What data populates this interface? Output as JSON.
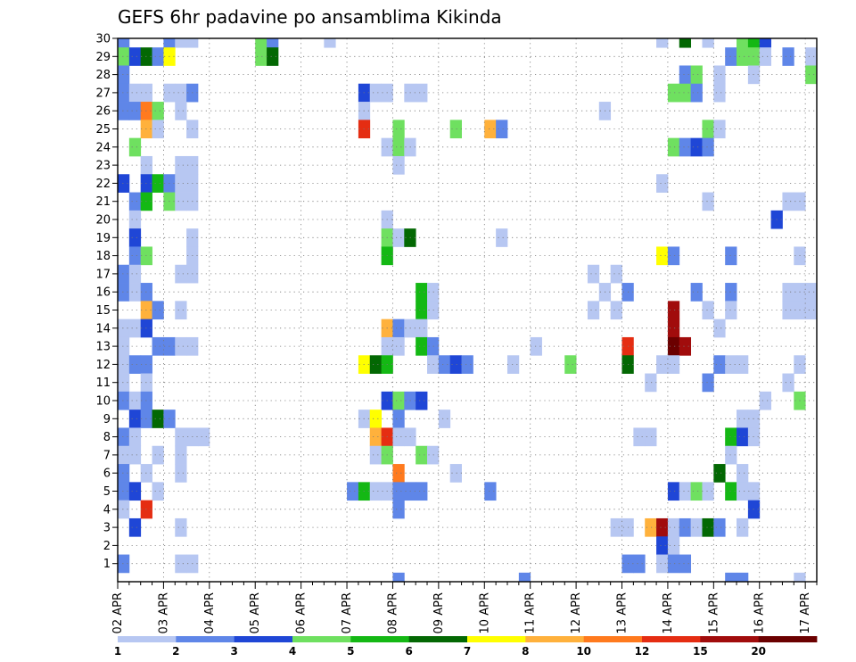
{
  "chart_data": {
    "type": "heatmap",
    "title": "GEFS 6hr padavine po ansamblima Kikinda",
    "xlabel": "",
    "ylabel": "",
    "x_tick_labels": [
      "02 APR",
      "03 APR",
      "04 APR",
      "05 APR",
      "06 APR",
      "07 APR",
      "08 APR",
      "09 APR",
      "10 APR",
      "11 APR",
      "12 APR",
      "13 APR",
      "14 APR",
      "15 APR",
      "16 APR",
      "17 APR"
    ],
    "y_tick_labels": [
      "1",
      "2",
      "3",
      "4",
      "5",
      "6",
      "7",
      "8",
      "9",
      "10",
      "11",
      "12",
      "13",
      "14",
      "15",
      "16",
      "17",
      "18",
      "19",
      "20",
      "21",
      "22",
      "23",
      "24",
      "25",
      "26",
      "27",
      "28",
      "29",
      "30"
    ],
    "xlim": [
      0,
      61
    ],
    "ylim": [
      0,
      30
    ],
    "steps_per_day": 4,
    "grid": true,
    "colorbar": {
      "position": "bottom",
      "levels": [
        "1",
        "2",
        "3",
        "4",
        "5",
        "6",
        "7",
        "8",
        "10",
        "12",
        "15",
        "20"
      ],
      "colors": [
        "#b7c7f2",
        "#5f86e8",
        "#1f46d6",
        "#6fe060",
        "#14b814",
        "#036803",
        "#ffff00",
        "#ffb13c",
        "#ff7a1e",
        "#e52d12",
        "#a10c0c",
        "#6b0000"
      ]
    },
    "cells": [
      {
        "m": 30,
        "s": [
          [
            0,
            1
          ],
          [
            4,
            1
          ],
          [
            5,
            0
          ],
          [
            6,
            0
          ],
          [
            12,
            3
          ],
          [
            13,
            1
          ],
          [
            18,
            0
          ],
          [
            47,
            0
          ],
          [
            49,
            5
          ],
          [
            51,
            0
          ],
          [
            54,
            3
          ],
          [
            55,
            4
          ],
          [
            56,
            2
          ]
        ]
      },
      {
        "m": 29,
        "s": [
          [
            0,
            3
          ],
          [
            1,
            2
          ],
          [
            2,
            5
          ],
          [
            3,
            1
          ],
          [
            4,
            6
          ],
          [
            12,
            3
          ],
          [
            13,
            5
          ],
          [
            53,
            1
          ],
          [
            54,
            3
          ],
          [
            55,
            3
          ],
          [
            56,
            0
          ],
          [
            58,
            1
          ],
          [
            60,
            0
          ]
        ]
      },
      {
        "m": 28,
        "s": [
          [
            0,
            1
          ],
          [
            49,
            1
          ],
          [
            50,
            3
          ],
          [
            52,
            0
          ],
          [
            55,
            0
          ],
          [
            60,
            3
          ],
          [
            61,
            1
          ]
        ]
      },
      {
        "m": 27,
        "s": [
          [
            0,
            1
          ],
          [
            1,
            0
          ],
          [
            2,
            0
          ],
          [
            4,
            0
          ],
          [
            5,
            0
          ],
          [
            6,
            1
          ],
          [
            21,
            2
          ],
          [
            22,
            0
          ],
          [
            23,
            0
          ],
          [
            25,
            0
          ],
          [
            26,
            0
          ],
          [
            48,
            3
          ],
          [
            49,
            3
          ],
          [
            50,
            1
          ],
          [
            52,
            0
          ]
        ]
      },
      {
        "m": 26,
        "s": [
          [
            0,
            1
          ],
          [
            1,
            1
          ],
          [
            2,
            8
          ],
          [
            3,
            3
          ],
          [
            5,
            0
          ],
          [
            21,
            0
          ],
          [
            42,
            0
          ]
        ]
      },
      {
        "m": 25,
        "s": [
          [
            2,
            7
          ],
          [
            3,
            0
          ],
          [
            6,
            0
          ],
          [
            21,
            9
          ],
          [
            24,
            3
          ],
          [
            29,
            3
          ],
          [
            32,
            7
          ],
          [
            33,
            1
          ],
          [
            51,
            3
          ],
          [
            52,
            0
          ]
        ]
      },
      {
        "m": 24,
        "s": [
          [
            1,
            3
          ],
          [
            23,
            0
          ],
          [
            24,
            3
          ],
          [
            25,
            0
          ],
          [
            48,
            3
          ],
          [
            49,
            1
          ],
          [
            50,
            2
          ],
          [
            51,
            1
          ]
        ]
      },
      {
        "m": 23,
        "s": [
          [
            2,
            0
          ],
          [
            5,
            0
          ],
          [
            6,
            0
          ],
          [
            24,
            0
          ]
        ]
      },
      {
        "m": 22,
        "s": [
          [
            0,
            2
          ],
          [
            2,
            2
          ],
          [
            3,
            4
          ],
          [
            4,
            1
          ],
          [
            5,
            0
          ],
          [
            6,
            0
          ],
          [
            47,
            0
          ]
        ]
      },
      {
        "m": 21,
        "s": [
          [
            1,
            1
          ],
          [
            2,
            4
          ],
          [
            4,
            3
          ],
          [
            5,
            0
          ],
          [
            6,
            0
          ],
          [
            51,
            0
          ],
          [
            58,
            0
          ],
          [
            59,
            0
          ]
        ]
      },
      {
        "m": 20,
        "s": [
          [
            1,
            0
          ],
          [
            23,
            0
          ],
          [
            57,
            2
          ]
        ]
      },
      {
        "m": 19,
        "s": [
          [
            1,
            2
          ],
          [
            6,
            0
          ],
          [
            23,
            3
          ],
          [
            24,
            0
          ],
          [
            25,
            5
          ],
          [
            33,
            0
          ]
        ]
      },
      {
        "m": 18,
        "s": [
          [
            1,
            1
          ],
          [
            2,
            3
          ],
          [
            6,
            0
          ],
          [
            23,
            4
          ],
          [
            47,
            6
          ],
          [
            48,
            1
          ],
          [
            53,
            1
          ],
          [
            59,
            0
          ]
        ]
      },
      {
        "m": 17,
        "s": [
          [
            0,
            1
          ],
          [
            1,
            0
          ],
          [
            5,
            0
          ],
          [
            6,
            0
          ],
          [
            41,
            0
          ],
          [
            43,
            0
          ]
        ]
      },
      {
        "m": 16,
        "s": [
          [
            0,
            1
          ],
          [
            1,
            0
          ],
          [
            2,
            1
          ],
          [
            26,
            4
          ],
          [
            27,
            0
          ],
          [
            42,
            0
          ],
          [
            44,
            1
          ],
          [
            50,
            1
          ],
          [
            53,
            1
          ],
          [
            58,
            0
          ],
          [
            59,
            0
          ],
          [
            60,
            0
          ]
        ]
      },
      {
        "m": 15,
        "s": [
          [
            2,
            7
          ],
          [
            3,
            1
          ],
          [
            5,
            0
          ],
          [
            26,
            4
          ],
          [
            27,
            0
          ],
          [
            41,
            0
          ],
          [
            43,
            0
          ],
          [
            48,
            10
          ],
          [
            51,
            0
          ],
          [
            53,
            0
          ],
          [
            58,
            0
          ],
          [
            59,
            0
          ],
          [
            60,
            0
          ]
        ]
      },
      {
        "m": 14,
        "s": [
          [
            0,
            0
          ],
          [
            1,
            0
          ],
          [
            2,
            2
          ],
          [
            23,
            7
          ],
          [
            24,
            1
          ],
          [
            25,
            0
          ],
          [
            26,
            0
          ],
          [
            48,
            10
          ],
          [
            52,
            0
          ]
        ]
      },
      {
        "m": 13,
        "s": [
          [
            0,
            0
          ],
          [
            3,
            1
          ],
          [
            4,
            1
          ],
          [
            5,
            0
          ],
          [
            6,
            0
          ],
          [
            23,
            0
          ],
          [
            24,
            0
          ],
          [
            26,
            4
          ],
          [
            27,
            1
          ],
          [
            36,
            0
          ],
          [
            44,
            9
          ],
          [
            48,
            11
          ],
          [
            49,
            10
          ]
        ]
      },
      {
        "m": 12,
        "s": [
          [
            0,
            0
          ],
          [
            1,
            1
          ],
          [
            2,
            1
          ],
          [
            21,
            6
          ],
          [
            22,
            5
          ],
          [
            23,
            4
          ],
          [
            27,
            0
          ],
          [
            28,
            1
          ],
          [
            29,
            2
          ],
          [
            30,
            1
          ],
          [
            34,
            0
          ],
          [
            39,
            3
          ],
          [
            44,
            5
          ],
          [
            47,
            0
          ],
          [
            48,
            0
          ],
          [
            52,
            1
          ],
          [
            53,
            0
          ],
          [
            54,
            0
          ],
          [
            59,
            0
          ]
        ]
      },
      {
        "m": 11,
        "s": [
          [
            0,
            0
          ],
          [
            2,
            0
          ],
          [
            46,
            0
          ],
          [
            51,
            1
          ],
          [
            58,
            0
          ]
        ]
      },
      {
        "m": 10,
        "s": [
          [
            0,
            1
          ],
          [
            1,
            0
          ],
          [
            2,
            1
          ],
          [
            23,
            2
          ],
          [
            24,
            3
          ],
          [
            25,
            1
          ],
          [
            26,
            2
          ],
          [
            56,
            0
          ],
          [
            59,
            3
          ]
        ]
      },
      {
        "m": 9,
        "s": [
          [
            1,
            2
          ],
          [
            2,
            1
          ],
          [
            3,
            5
          ],
          [
            4,
            1
          ],
          [
            21,
            0
          ],
          [
            22,
            6
          ],
          [
            24,
            1
          ],
          [
            28,
            0
          ],
          [
            54,
            0
          ],
          [
            55,
            0
          ]
        ]
      },
      {
        "m": 8,
        "s": [
          [
            0,
            1
          ],
          [
            1,
            0
          ],
          [
            5,
            0
          ],
          [
            6,
            0
          ],
          [
            7,
            0
          ],
          [
            22,
            7
          ],
          [
            23,
            9
          ],
          [
            24,
            0
          ],
          [
            25,
            0
          ],
          [
            45,
            0
          ],
          [
            46,
            0
          ],
          [
            53,
            4
          ],
          [
            54,
            2
          ],
          [
            55,
            0
          ]
        ]
      },
      {
        "m": 7,
        "s": [
          [
            0,
            0
          ],
          [
            1,
            0
          ],
          [
            3,
            0
          ],
          [
            5,
            0
          ],
          [
            22,
            0
          ],
          [
            23,
            3
          ],
          [
            26,
            3
          ],
          [
            27,
            0
          ],
          [
            53,
            0
          ]
        ]
      },
      {
        "m": 6,
        "s": [
          [
            0,
            1
          ],
          [
            2,
            0
          ],
          [
            5,
            0
          ],
          [
            24,
            8
          ],
          [
            29,
            0
          ],
          [
            52,
            5
          ],
          [
            54,
            0
          ]
        ]
      },
      {
        "m": 5,
        "s": [
          [
            0,
            1
          ],
          [
            1,
            2
          ],
          [
            3,
            0
          ],
          [
            20,
            1
          ],
          [
            21,
            4
          ],
          [
            22,
            0
          ],
          [
            23,
            0
          ],
          [
            24,
            1
          ],
          [
            25,
            1
          ],
          [
            26,
            1
          ],
          [
            32,
            1
          ],
          [
            48,
            2
          ],
          [
            49,
            0
          ],
          [
            50,
            3
          ],
          [
            51,
            0
          ],
          [
            53,
            4
          ],
          [
            54,
            0
          ],
          [
            55,
            0
          ]
        ]
      },
      {
        "m": 4,
        "s": [
          [
            0,
            0
          ],
          [
            2,
            9
          ],
          [
            24,
            1
          ],
          [
            55,
            2
          ]
        ]
      },
      {
        "m": 3,
        "s": [
          [
            1,
            2
          ],
          [
            5,
            0
          ],
          [
            43,
            0
          ],
          [
            44,
            0
          ],
          [
            46,
            7
          ],
          [
            47,
            10
          ],
          [
            48,
            0
          ],
          [
            49,
            1
          ],
          [
            50,
            0
          ],
          [
            51,
            5
          ],
          [
            52,
            1
          ],
          [
            54,
            0
          ]
        ]
      },
      {
        "m": 2,
        "s": [
          [
            47,
            2
          ],
          [
            48,
            0
          ]
        ]
      },
      {
        "m": 1,
        "s": [
          [
            0,
            1
          ],
          [
            5,
            0
          ],
          [
            6,
            0
          ],
          [
            44,
            1
          ],
          [
            45,
            1
          ],
          [
            47,
            0
          ],
          [
            48,
            1
          ],
          [
            49,
            1
          ]
        ]
      },
      {
        "m": 0,
        "s": [
          [
            24,
            1
          ],
          [
            35,
            1
          ],
          [
            53,
            1
          ],
          [
            54,
            1
          ],
          [
            59,
            0
          ]
        ]
      }
    ]
  }
}
